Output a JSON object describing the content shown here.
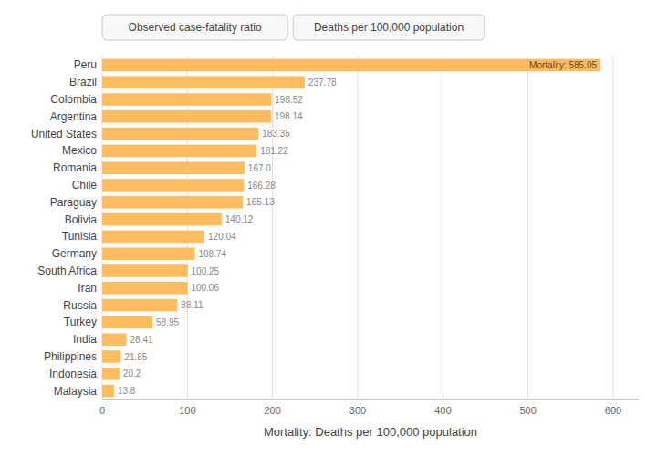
{
  "chart_data": {
    "type": "bar",
    "orientation": "horizontal",
    "x_label": "Mortality: Deaths per 100,000 population",
    "annotations": [
      "Observed case-fatality ratio",
      "Deaths per 100,000 population"
    ],
    "categories": [
      "Peru",
      "Brazil",
      "Colombia",
      "Argentina",
      "United States",
      "Mexico",
      "Romania",
      "Chile",
      "Paraguay",
      "Bolivia",
      "Tunisia",
      "Germany",
      "South Africa",
      "Iran",
      "Russia",
      "Turkey",
      "India",
      "Philippines",
      "Indonesia",
      "Malaysia"
    ],
    "values": [
      585.05,
      237.78,
      198.52,
      198.14,
      183.35,
      181.22,
      167.0,
      166.28,
      165.13,
      140.12,
      120.04,
      108.74,
      100.25,
      100.06,
      88.11,
      58.95,
      28.41,
      21.85,
      20.2,
      13.8
    ],
    "value_labels": [
      "Mortality: 585.05",
      "237.78",
      "198.52",
      "198.14",
      "183.35",
      "181.22",
      "167.0",
      "166.28",
      "165.13",
      "140.12",
      "120.04",
      "108.74",
      "100.25",
      "100.06",
      "88.11",
      "58.95",
      "28.41",
      "21.85",
      "20.2",
      "13.8"
    ],
    "color": "#FFBC5E",
    "xlim": [
      0,
      630
    ],
    "xticks": [
      0,
      100,
      200,
      300,
      400,
      500,
      600
    ],
    "grid": true,
    "data_labels": true
  }
}
